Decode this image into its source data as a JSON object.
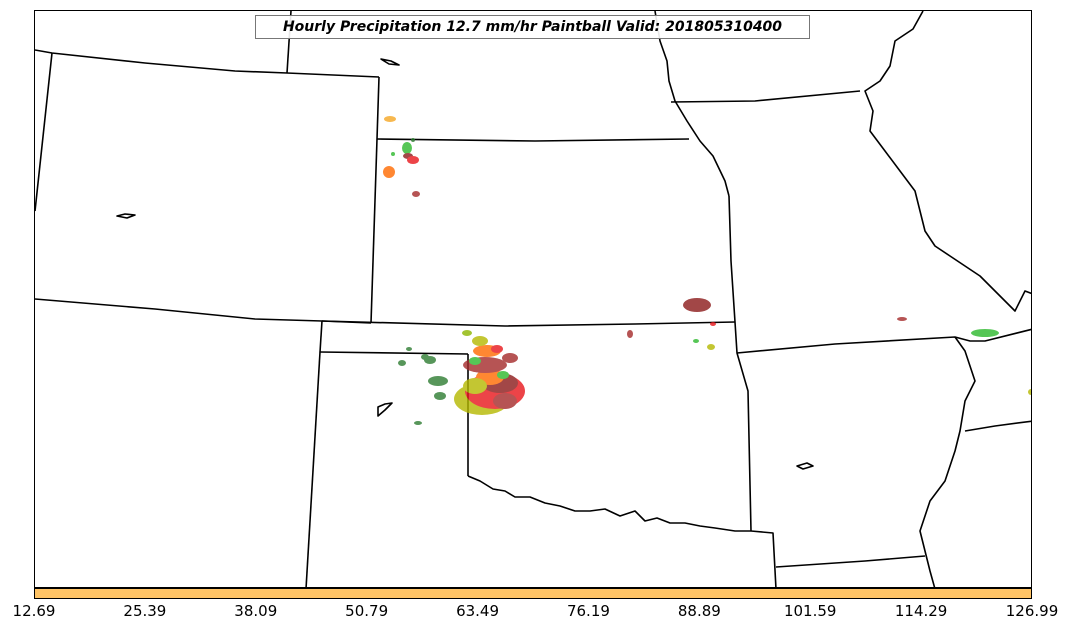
{
  "title": "Hourly Precipitation 12.7 mm/hr Paintball Valid: 201805310400",
  "colorbar": {
    "color": "#ffc466",
    "ticks": [
      "12.69",
      "25.39",
      "38.09",
      "50.79",
      "63.49",
      "76.19",
      "88.89",
      "101.59",
      "114.29",
      "126.99"
    ]
  },
  "map": {
    "background": "#ffffff",
    "boundary_color": "#000000",
    "paintball_colors": [
      "#8b1a1a",
      "#e8161b",
      "#2db82d",
      "#8db600",
      "#ff6a00",
      "#f5a623",
      "#2e7d32",
      "#a52a2a",
      "#b5b800"
    ]
  }
}
